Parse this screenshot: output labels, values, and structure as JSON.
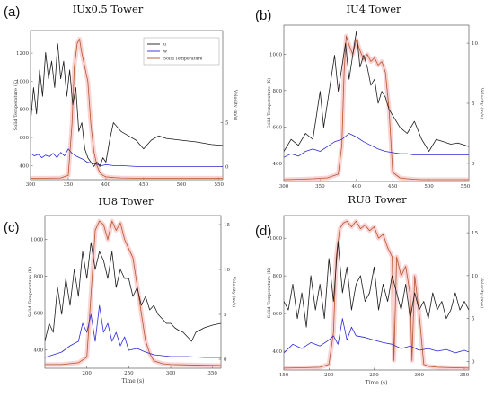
{
  "colors": {
    "u": "#1a1a1a",
    "w": "#2a2ad8",
    "temp": "#b5542e",
    "temp_glow": "#f4a0a0"
  },
  "chart_data": [
    {
      "letter": "(a)",
      "title": "IUx0.5 Tower",
      "type": "line",
      "xlabel": "",
      "ylabel": "Solid Temperature (K)",
      "y2label": "Velocity (m/s)",
      "xlim": [
        300,
        555
      ],
      "ylim": [
        300,
        1360
      ],
      "y2lim": [
        -1.5,
        15.5
      ],
      "xticks": [
        300,
        350,
        400,
        450,
        500,
        550
      ],
      "yticks": [
        400,
        600,
        800,
        1000,
        1200
      ],
      "y2ticks": [
        0,
        5
      ],
      "legend": {
        "position": "top-right",
        "entries": [
          "u",
          "w",
          "Solid Temperature"
        ]
      },
      "series": [
        {
          "name": "u",
          "axis": "right",
          "x": [
            300,
            304,
            308,
            312,
            316,
            320,
            324,
            328,
            332,
            336,
            340,
            344,
            348,
            352,
            356,
            360,
            364,
            368,
            372,
            376,
            380,
            384,
            388,
            392,
            396,
            400,
            405,
            410,
            420,
            430,
            440,
            450,
            460,
            470,
            480,
            500,
            520,
            540,
            555
          ],
          "y": [
            5,
            9,
            6,
            11,
            8,
            13,
            10,
            12,
            9,
            14,
            10,
            12,
            8,
            11,
            7,
            9,
            4,
            5,
            2,
            1,
            0.5,
            0,
            0.5,
            0,
            1,
            0.5,
            3,
            5,
            4,
            3.5,
            3,
            2,
            3,
            3.5,
            3.2,
            3,
            2.8,
            2.5,
            2.4
          ]
        },
        {
          "name": "w",
          "axis": "right",
          "x": [
            300,
            305,
            310,
            315,
            320,
            325,
            330,
            335,
            340,
            345,
            350,
            355,
            360,
            365,
            370,
            375,
            380,
            385,
            390,
            395,
            400,
            410,
            420,
            440,
            460,
            480,
            500,
            520,
            540,
            555
          ],
          "y": [
            1.5,
            1.2,
            1.4,
            1.0,
            1.3,
            1.1,
            1.5,
            1.0,
            1.6,
            1.2,
            2.0,
            1.5,
            1.2,
            1.0,
            0.8,
            0.5,
            0.4,
            0.3,
            0.2,
            0.1,
            0.2,
            0.1,
            0.1,
            0,
            0,
            0,
            0,
            0,
            0,
            0
          ]
        },
        {
          "name": "Solid Temperature",
          "axis": "left",
          "x": [
            300,
            320,
            340,
            350,
            355,
            358,
            362,
            365,
            368,
            372,
            376,
            380,
            384,
            388,
            392,
            396,
            400,
            410,
            420,
            440,
            460,
            480,
            500,
            520,
            540,
            555
          ],
          "y": [
            310,
            310,
            312,
            330,
            700,
            1100,
            1270,
            1300,
            1200,
            1100,
            1000,
            700,
            500,
            400,
            350,
            330,
            320,
            315,
            312,
            310,
            310,
            310,
            310,
            310,
            310,
            310
          ]
        }
      ]
    },
    {
      "letter": "(b)",
      "title": "IU4 Tower",
      "type": "line",
      "xlabel": "",
      "ylabel": "Solid Temperature (K)",
      "y2label": "Velocity (m/s)",
      "xlim": [
        300,
        555
      ],
      "ylim": [
        300,
        1160
      ],
      "y2lim": [
        -1.5,
        11.5
      ],
      "xticks": [
        300,
        350,
        400,
        450,
        500,
        550
      ],
      "yticks": [
        400,
        600,
        800,
        1000
      ],
      "y2ticks": [
        0,
        5,
        10
      ],
      "legend": null,
      "series": [
        {
          "name": "u",
          "axis": "right",
          "x": [
            300,
            310,
            320,
            330,
            340,
            345,
            350,
            355,
            360,
            365,
            370,
            375,
            380,
            385,
            390,
            395,
            400,
            405,
            410,
            415,
            420,
            425,
            430,
            435,
            440,
            445,
            450,
            455,
            460,
            470,
            480,
            490,
            500,
            510,
            520,
            530,
            540,
            550,
            555
          ],
          "y": [
            1,
            2,
            1.5,
            2.5,
            2,
            4,
            6,
            3,
            5,
            7,
            9,
            6,
            8,
            10,
            7,
            9,
            11,
            8,
            9,
            8,
            6.5,
            7,
            5,
            6,
            5.5,
            4.5,
            4,
            3.5,
            3,
            2.5,
            3.5,
            2,
            1,
            2,
            1.8,
            1.6,
            1.7,
            1.5,
            1.4
          ]
        },
        {
          "name": "w",
          "axis": "right",
          "x": [
            300,
            310,
            320,
            330,
            340,
            350,
            360,
            370,
            380,
            390,
            400,
            410,
            420,
            430,
            440,
            450,
            460,
            470,
            480,
            500,
            520,
            540,
            555
          ],
          "y": [
            0.5,
            0.8,
            0.6,
            1.0,
            1.2,
            1.0,
            1.4,
            1.8,
            2.0,
            2.5,
            2.2,
            1.8,
            1.5,
            1.2,
            1.0,
            0.9,
            0.8,
            0.8,
            0.7,
            0.7,
            0.7,
            0.7,
            0.7
          ]
        },
        {
          "name": "Solid Temperature",
          "axis": "left",
          "x": [
            300,
            320,
            340,
            360,
            375,
            380,
            383,
            386,
            390,
            395,
            400,
            405,
            410,
            415,
            420,
            425,
            430,
            435,
            440,
            445,
            450,
            460,
            470,
            480,
            490,
            500,
            520,
            540,
            555
          ],
          "y": [
            310,
            312,
            315,
            320,
            340,
            500,
            900,
            1100,
            1050,
            1000,
            1080,
            1020,
            970,
            1000,
            960,
            980,
            940,
            960,
            900,
            700,
            350,
            320,
            315,
            312,
            310,
            310,
            310,
            310,
            310
          ]
        }
      ]
    },
    {
      "letter": "(c)",
      "title": "IU8 Tower",
      "type": "line",
      "xlabel": "Time (s)",
      "ylabel": "Solid Temperature (K)",
      "y2label": "Velocity (m/s)",
      "xlim": [
        150,
        360
      ],
      "ylim": [
        300,
        1130
      ],
      "y2lim": [
        -1,
        16
      ],
      "xticks": [
        200,
        250,
        300,
        350
      ],
      "yticks": [
        400,
        600,
        800,
        1000
      ],
      "y2ticks": [
        0,
        5,
        10,
        15
      ],
      "legend": null,
      "series": [
        {
          "name": "u",
          "axis": "right",
          "x": [
            150,
            155,
            160,
            165,
            170,
            175,
            180,
            185,
            190,
            195,
            200,
            205,
            210,
            215,
            220,
            225,
            230,
            235,
            240,
            245,
            250,
            255,
            260,
            265,
            270,
            275,
            280,
            285,
            290,
            295,
            300,
            305,
            310,
            315,
            320,
            325,
            330,
            340,
            350,
            360
          ],
          "y": [
            2,
            4,
            3,
            8,
            5,
            9,
            6,
            10,
            7,
            12,
            9,
            13,
            10,
            12,
            11,
            9,
            12,
            8,
            10,
            9,
            9,
            7,
            8,
            6,
            7,
            5.5,
            6,
            5,
            4.5,
            4,
            4,
            3.5,
            3.2,
            3,
            2.5,
            2,
            3,
            3.5,
            3.8,
            4
          ]
        },
        {
          "name": "w",
          "axis": "right",
          "x": [
            150,
            160,
            170,
            180,
            190,
            195,
            200,
            205,
            210,
            215,
            220,
            225,
            230,
            235,
            240,
            245,
            250,
            260,
            270,
            280,
            290,
            300,
            320,
            340,
            360
          ],
          "y": [
            0.2,
            0.5,
            0.8,
            1.5,
            2,
            4,
            3,
            5,
            2,
            6,
            3,
            4,
            2,
            3,
            1.5,
            2.5,
            1,
            1.2,
            0.8,
            0.5,
            0.4,
            0.3,
            0.3,
            0.2,
            0.2
          ]
        },
        {
          "name": "Solid Temperature",
          "axis": "left",
          "x": [
            150,
            170,
            190,
            200,
            205,
            210,
            215,
            220,
            225,
            230,
            235,
            240,
            245,
            250,
            255,
            260,
            265,
            270,
            275,
            280,
            290,
            300,
            320,
            340,
            360
          ],
          "y": [
            320,
            320,
            330,
            360,
            700,
            1050,
            1100,
            1080,
            1000,
            1100,
            1050,
            1090,
            1000,
            950,
            900,
            750,
            600,
            450,
            380,
            340,
            325,
            320,
            318,
            316,
            315
          ]
        }
      ]
    },
    {
      "letter": "(d)",
      "title": "RU8 Tower",
      "type": "line",
      "xlabel": "Time (s)",
      "ylabel": "Solid Temperature (K)",
      "y2label": "Velocity (m/s)",
      "xlim": [
        150,
        355
      ],
      "ylim": [
        300,
        1120
      ],
      "y2lim": [
        -1,
        17
      ],
      "xticks": [
        150,
        200,
        250,
        300,
        350
      ],
      "yticks": [
        400,
        600,
        800,
        1000
      ],
      "y2ticks": [
        0,
        5,
        10,
        15
      ],
      "legend": null,
      "series": [
        {
          "name": "u",
          "axis": "right",
          "x": [
            150,
            155,
            160,
            165,
            170,
            175,
            180,
            185,
            190,
            195,
            200,
            205,
            210,
            215,
            220,
            225,
            230,
            235,
            240,
            245,
            250,
            255,
            260,
            265,
            270,
            275,
            280,
            285,
            290,
            295,
            300,
            305,
            310,
            315,
            320,
            325,
            330,
            335,
            340,
            345,
            350,
            355
          ],
          "y": [
            7,
            6,
            9,
            5,
            8,
            4,
            10,
            6,
            9,
            5,
            12,
            7,
            14,
            8,
            11,
            6,
            9,
            10,
            7,
            8,
            11,
            6,
            9,
            7,
            10,
            8,
            6,
            9,
            5,
            8,
            6,
            7,
            5,
            8,
            6,
            7,
            5,
            6,
            8,
            6,
            7,
            6
          ]
        },
        {
          "name": "w",
          "axis": "right",
          "x": [
            150,
            160,
            170,
            180,
            190,
            200,
            205,
            210,
            215,
            220,
            225,
            230,
            240,
            250,
            260,
            270,
            280,
            290,
            300,
            310,
            320,
            330,
            340,
            350,
            355
          ],
          "y": [
            1,
            2,
            1.5,
            2.2,
            1.8,
            2.5,
            3,
            2,
            5,
            2.5,
            4,
            3,
            2.8,
            2.5,
            2.2,
            2,
            1.5,
            1.8,
            1.3,
            1.5,
            1.2,
            1.4,
            1.0,
            1.3,
            1.1
          ]
        },
        {
          "name": "Solid Temperature",
          "axis": "left",
          "x": [
            150,
            170,
            190,
            200,
            205,
            208,
            212,
            216,
            220,
            225,
            230,
            235,
            240,
            245,
            250,
            255,
            260,
            265,
            270,
            272,
            275,
            280,
            285,
            290,
            292,
            295,
            300,
            305,
            310,
            320,
            340,
            355
          ],
          "y": [
            310,
            312,
            315,
            330,
            500,
            900,
            1050,
            1080,
            1090,
            1060,
            1090,
            1050,
            1070,
            1040,
            1060,
            1000,
            1020,
            950,
            900,
            350,
            900,
            800,
            850,
            700,
            350,
            800,
            600,
            330,
            320,
            315,
            312,
            310
          ]
        }
      ]
    }
  ]
}
